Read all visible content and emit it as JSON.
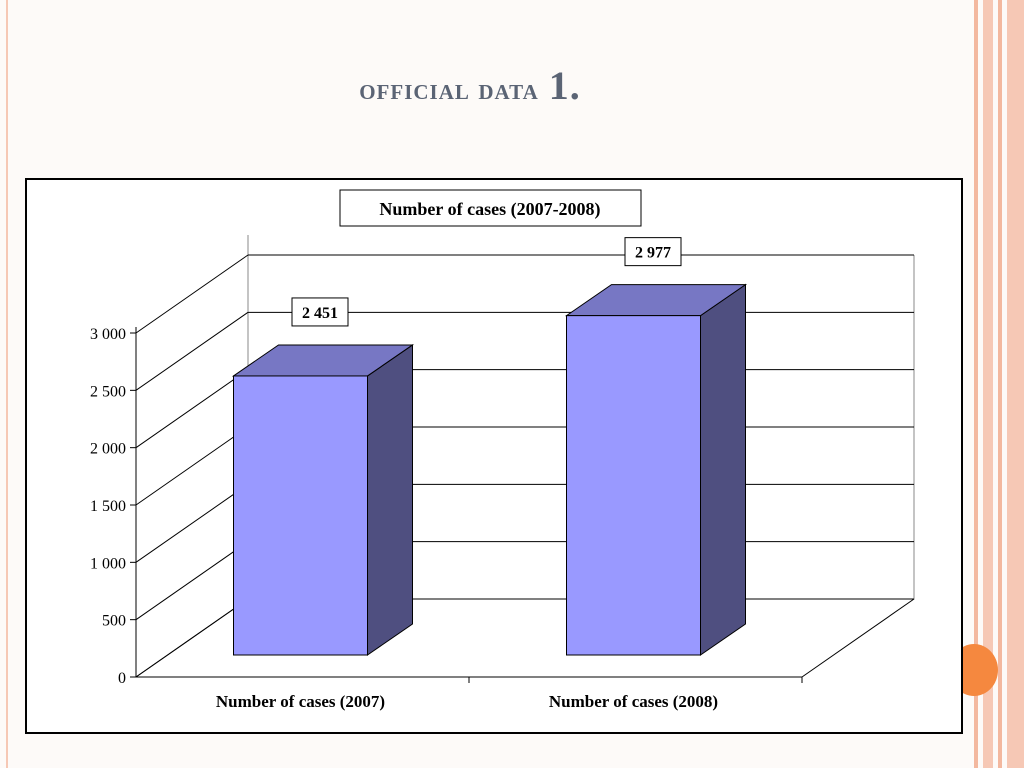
{
  "slide": {
    "title_word": "official data",
    "title_number": "1."
  },
  "colors": {
    "bar_front": "#9999ff",
    "bar_top": "#7777c4",
    "bar_side": "#4f4f80",
    "accent_orange": "#f5883f",
    "title": "#5b6475"
  },
  "chart_data": {
    "type": "bar",
    "title": "Number of cases (2007-2008)",
    "categories": [
      "Number of cases (2007)",
      "Number of cases (2008)"
    ],
    "values": [
      2451,
      2977
    ],
    "value_labels": [
      "2 451",
      "2 977"
    ],
    "ylim": [
      0,
      3000
    ],
    "yticks": [
      0,
      500,
      1000,
      1500,
      2000,
      2500,
      3000
    ],
    "ytick_labels": [
      "0",
      "500",
      "1 000",
      "1 500",
      "2 000",
      "2 500",
      "3 000"
    ],
    "style": "3d",
    "grid": true,
    "legend": "none"
  }
}
